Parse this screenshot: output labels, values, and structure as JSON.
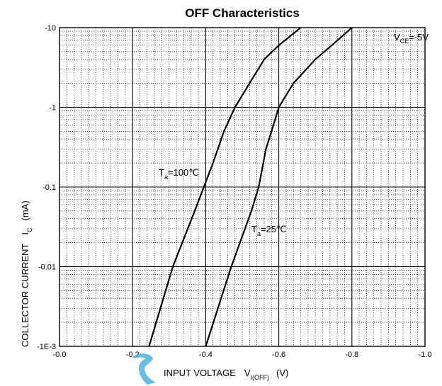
{
  "chart_data": {
    "type": "line",
    "title": "OFF Characteristics",
    "xlabel": "INPUT VOLTAGE",
    "xlabel_symbol": "V",
    "xlabel_symbol_sub": "I(OFF)",
    "xlabel_unit": "(V)",
    "ylabel": "COLLECTOR CURRENT",
    "ylabel_symbol": "I",
    "ylabel_symbol_sub": "C",
    "ylabel_unit": "(mA)",
    "x_direction": "decreasing",
    "xlim": [
      0.0,
      -1.0
    ],
    "ylim": [
      -0.001,
      -10
    ],
    "yscale": "log",
    "xticks": [
      {
        "value": 0.0,
        "label": "-0.0"
      },
      {
        "value": -0.2,
        "label": "-0.2"
      },
      {
        "value": -0.4,
        "label": "-0.4"
      },
      {
        "value": -0.6,
        "label": "-0.6"
      },
      {
        "value": -0.8,
        "label": "-0.8"
      },
      {
        "value": -1.0,
        "label": "-1.0"
      }
    ],
    "yticks": [
      {
        "value": -10,
        "label": "-10"
      },
      {
        "value": -1,
        "label": "-1"
      },
      {
        "value": -0.1,
        "label": "-0.1"
      },
      {
        "value": -0.01,
        "label": "-0.01"
      },
      {
        "value": -0.001,
        "label": "-1E-3"
      }
    ],
    "grid": true,
    "condition": {
      "symbol": "V",
      "sub": "CE",
      "value": "=-5V"
    },
    "series": [
      {
        "name": "Ta=100℃",
        "label_symbol": "T",
        "label_sub": "a",
        "label_value": "=100℃",
        "color": "#000000",
        "points": [
          [
            -0.245,
            -0.001
          ],
          [
            -0.31,
            -0.01
          ],
          [
            -0.37,
            -0.05
          ],
          [
            -0.395,
            -0.1
          ],
          [
            -0.42,
            -0.2
          ],
          [
            -0.45,
            -0.5
          ],
          [
            -0.48,
            -1.0
          ],
          [
            -0.52,
            -2.0
          ],
          [
            -0.56,
            -4.0
          ],
          [
            -0.6,
            -6.0
          ],
          [
            -0.66,
            -10.0
          ]
        ]
      },
      {
        "name": "Ta=25℃",
        "label_symbol": "T",
        "label_sub": "a",
        "label_value": "=25℃",
        "color": "#000000",
        "points": [
          [
            -0.4,
            -0.001
          ],
          [
            -0.47,
            -0.01
          ],
          [
            -0.525,
            -0.05
          ],
          [
            -0.545,
            -0.1
          ],
          [
            -0.565,
            -0.3
          ],
          [
            -0.58,
            -0.5
          ],
          [
            -0.6,
            -1.0
          ],
          [
            -0.64,
            -2.0
          ],
          [
            -0.7,
            -4.0
          ],
          [
            -0.745,
            -6.0
          ],
          [
            -0.8,
            -10.0
          ]
        ]
      }
    ]
  },
  "watermark_color": "#55b8e0"
}
